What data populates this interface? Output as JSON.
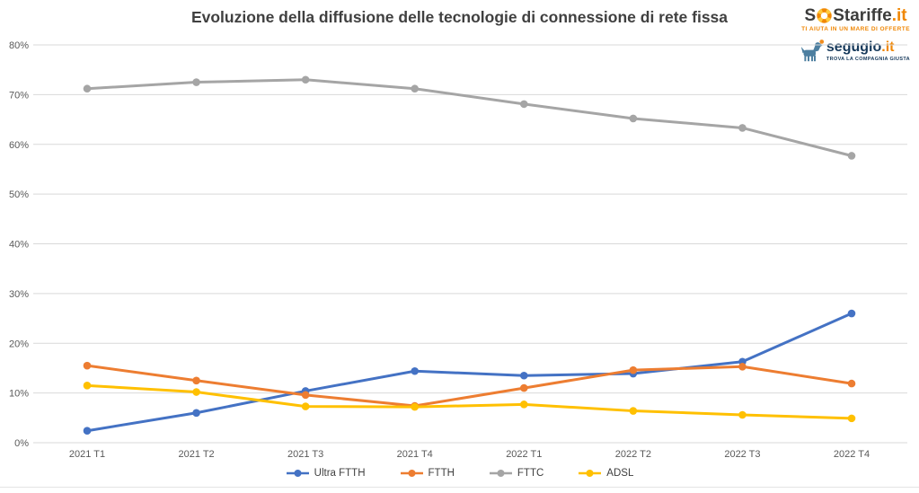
{
  "title": "Evoluzione della diffusione delle tecnologie di connessione di rete fissa",
  "logos": {
    "sostariffe": {
      "prefix": "S",
      "middle": "S",
      "name": "tariffe",
      "suffix": ".it",
      "tagline": "TI AIUTA IN UN MARE DI OFFERTE"
    },
    "segugio": {
      "name": "segugio",
      "suffix": ".it",
      "tagline": "TROVA LA COMPAGNIA GIUSTA"
    }
  },
  "chart_data": {
    "type": "line",
    "title": "Evoluzione della diffusione delle tecnologie di connessione di rete fissa",
    "categories": [
      "2021 T1",
      "2021 T2",
      "2021 T3",
      "2021 T4",
      "2022 T1",
      "2022 T2",
      "2022 T3",
      "2022 T4"
    ],
    "series": [
      {
        "name": "Ultra FTTH",
        "color": "#4472C4",
        "values": [
          2.4,
          6.0,
          10.4,
          14.4,
          13.5,
          13.9,
          16.3,
          26.0
        ]
      },
      {
        "name": "FTTH",
        "color": "#ED7D31",
        "values": [
          15.5,
          12.5,
          9.6,
          7.4,
          11.0,
          14.6,
          15.3,
          11.9
        ]
      },
      {
        "name": "FTTC",
        "color": "#A5A5A5",
        "values": [
          71.2,
          72.5,
          73.0,
          71.2,
          68.1,
          65.2,
          63.3,
          57.7
        ]
      },
      {
        "name": "ADSL",
        "color": "#FFC000",
        "values": [
          11.5,
          10.2,
          7.3,
          7.2,
          7.7,
          6.4,
          5.6,
          4.9
        ]
      }
    ],
    "y_ticks": [
      "80%",
      "70%",
      "60%",
      "50%",
      "40%",
      "30%",
      "20%",
      "10%",
      "0%"
    ],
    "ylim": [
      0,
      80
    ],
    "xlabel": "",
    "ylabel": "",
    "grid": true,
    "legend_position": "bottom"
  }
}
